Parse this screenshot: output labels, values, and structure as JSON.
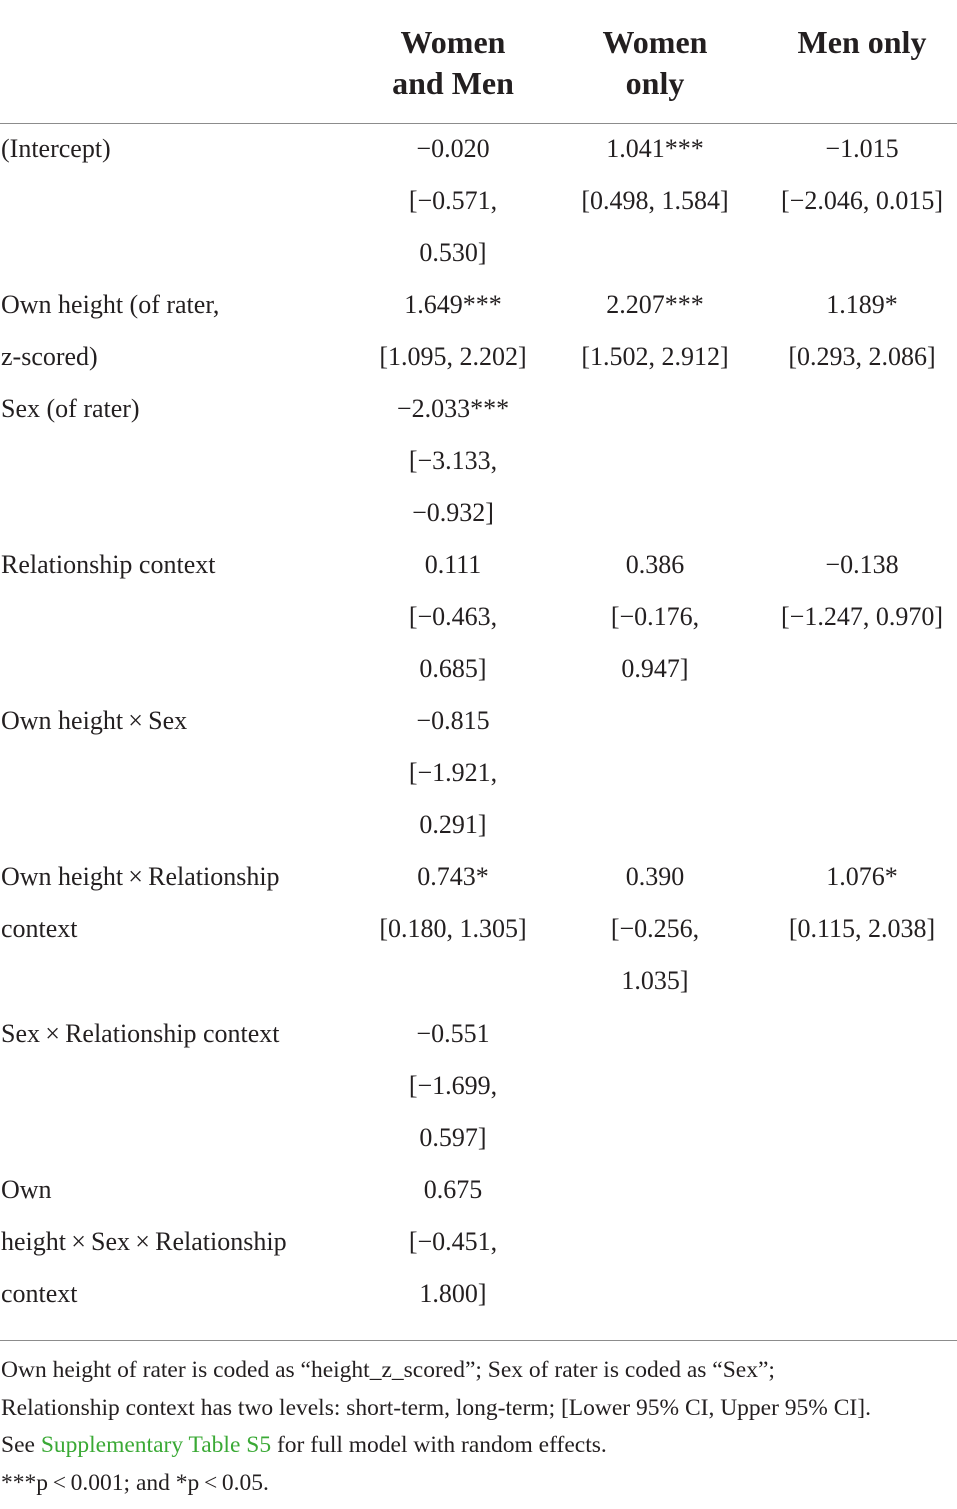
{
  "columns": [
    {
      "line1": "Women",
      "line2": "and Men"
    },
    {
      "line1": "Women",
      "line2": "only"
    },
    {
      "line1": "Men only",
      "line2": ""
    }
  ],
  "rows": [
    {
      "label": [
        "(Intercept)"
      ],
      "c1": [
        "−0.020",
        "[−0.571,",
        "0.530]"
      ],
      "c2": [
        "1.041***",
        "[0.498, 1.584]"
      ],
      "c3": [
        "−1.015",
        "[−2.046, 0.015]"
      ]
    },
    {
      "label": [
        "Own height (of rater,",
        "z-scored)"
      ],
      "c1": [
        "1.649***",
        "[1.095, 2.202]"
      ],
      "c2": [
        "2.207***",
        "[1.502, 2.912]"
      ],
      "c3": [
        "1.189*",
        "[0.293, 2.086]"
      ]
    },
    {
      "label": [
        "Sex (of rater)"
      ],
      "c1": [
        "−2.033***",
        "[−3.133,",
        "−0.932]"
      ],
      "c2": [],
      "c3": []
    },
    {
      "label": [
        "Relationship context"
      ],
      "c1": [
        "0.111",
        "[−0.463,",
        "0.685]"
      ],
      "c2": [
        "0.386",
        "[−0.176,",
        "0.947]"
      ],
      "c3": [
        "−0.138",
        "[−1.247, 0.970]"
      ]
    },
    {
      "label": [
        "Own height × Sex"
      ],
      "c1": [
        "−0.815",
        "[−1.921,",
        "0.291]"
      ],
      "c2": [],
      "c3": []
    },
    {
      "label": [
        "Own height × Relationship",
        "context"
      ],
      "c1": [
        "0.743*",
        "[0.180, 1.305]"
      ],
      "c2": [
        "0.390",
        "[−0.256,",
        "1.035]"
      ],
      "c3": [
        "1.076*",
        "[0.115, 2.038]"
      ]
    },
    {
      "label": [
        "Sex × Relationship context"
      ],
      "c1": [
        "−0.551",
        "[−1.699,",
        "0.597]"
      ],
      "c2": [],
      "c3": []
    },
    {
      "label": [
        "Own",
        "height × Sex × Relationship",
        "context"
      ],
      "c1": [
        "0.675",
        "[−0.451,",
        "1.800]"
      ],
      "c2": [],
      "c3": []
    }
  ],
  "notes": {
    "line1": "Own height of rater is coded as “height_z_scored”; Sex of rater is coded as “Sex”;",
    "line2": "Relationship context has two levels: short-term, long-term; [Lower 95% CI, Upper 95% CI].",
    "line3_pre": "See ",
    "line3_link": "Supplementary Table S5",
    "line3_post": " for full model with random effects.",
    "line4": "***p < 0.001; and *p < 0.05."
  }
}
